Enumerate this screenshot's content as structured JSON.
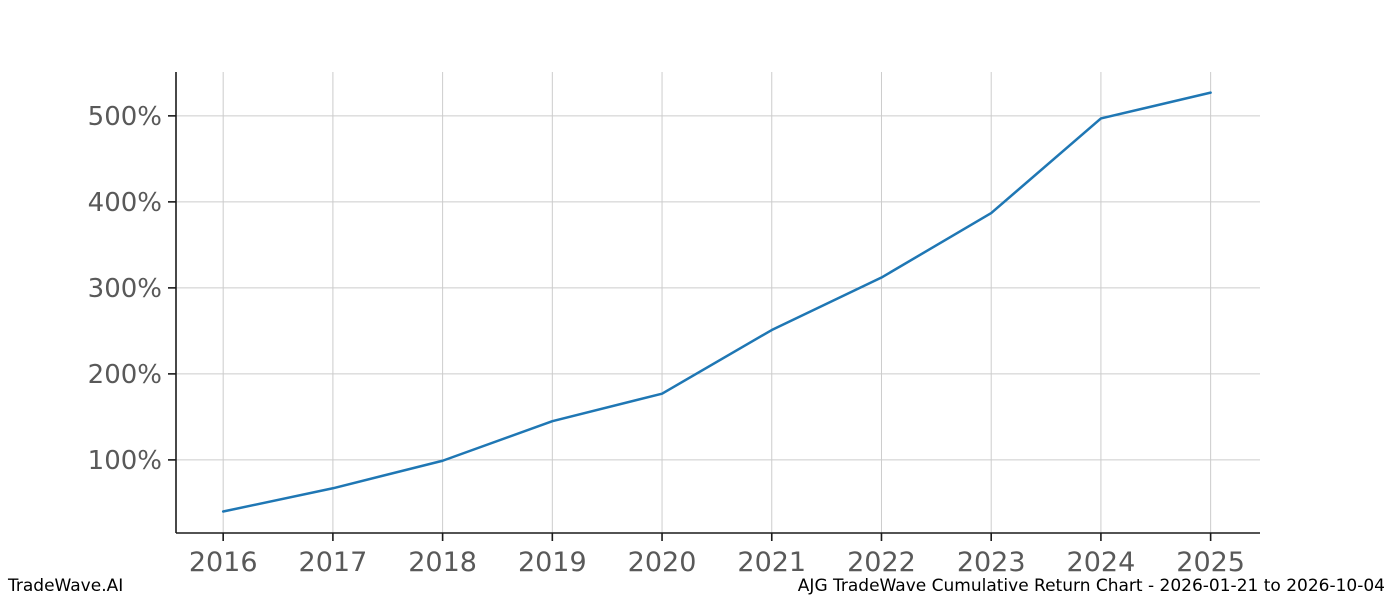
{
  "footer": {
    "brand": "TradeWave.AI",
    "title": "AJG TradeWave Cumulative Return Chart - 2026-01-21 to 2026-10-04"
  },
  "chart_data": {
    "type": "line",
    "title": "AJG TradeWave Cumulative Return Chart - 2026-01-21 to 2026-10-04",
    "x": [
      2016,
      2017,
      2018,
      2019,
      2020,
      2021,
      2022,
      2023,
      2024,
      2025
    ],
    "series": [
      {
        "name": "AJG cumulative return %",
        "values": [
          40,
          67,
          99,
          145,
          177,
          251,
          312,
          387,
          497,
          527
        ]
      }
    ],
    "xlabel": "",
    "ylabel": "",
    "xlim": [
      2015.57,
      2025.45
    ],
    "ylim": [
      15,
      551
    ],
    "yticks": [
      100,
      200,
      300,
      400,
      500
    ],
    "ytick_suffix": "%",
    "xticks": [
      2016,
      2017,
      2018,
      2019,
      2020,
      2021,
      2022,
      2023,
      2024,
      2025
    ],
    "grid": true,
    "legend": "none",
    "colors": {
      "line": "#1f77b4",
      "grid": "#cccccc",
      "spine": "#1a1a1a",
      "tick_label": "#595959",
      "background": "#ffffff"
    }
  }
}
